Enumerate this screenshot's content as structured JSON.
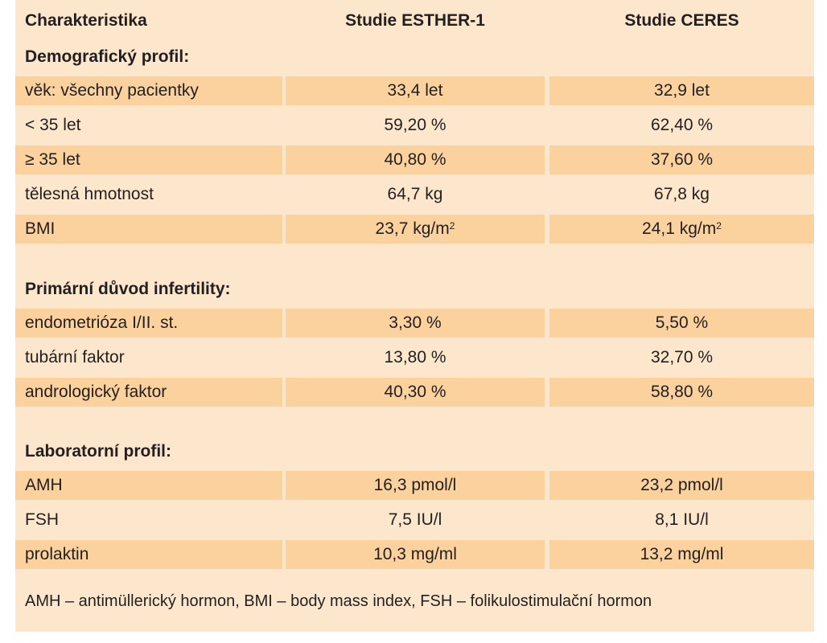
{
  "header": {
    "col1": "Charakteristika",
    "col2": "Studie ESTHER-1",
    "col3": "Studie CERES"
  },
  "sections": {
    "demo": {
      "title": "Demografický profil:",
      "rows": [
        {
          "label": "věk: všechny pacientky",
          "a": "33,4 let",
          "b": "32,9 let"
        },
        {
          "label": "< 35 let",
          "a": "59,20 %",
          "b": "62,40 %"
        },
        {
          "label": "≥ 35 let",
          "a": "40,80 %",
          "b": "37,60 %"
        },
        {
          "label": "tělesná hmotnost",
          "a": "64,7 kg",
          "b": "67,8 kg"
        },
        {
          "label": "BMI",
          "a": "23,7 kg/m",
          "b": "24,1 kg/m",
          "sup": "2"
        }
      ]
    },
    "cause": {
      "title": "Primární důvod infertility:",
      "rows": [
        {
          "label": "endometrióza I/II. st.",
          "a": "3,30 %",
          "b": "5,50 %"
        },
        {
          "label": "tubární faktor",
          "a": "13,80 %",
          "b": "32,70 %"
        },
        {
          "label": "andrologický faktor",
          "a": "40,30 %",
          "b": "58,80 %"
        }
      ]
    },
    "lab": {
      "title": "Laboratorní profil:",
      "rows": [
        {
          "label": "AMH",
          "a": "16,3 pmol/l",
          "b": "23,2 pmol/l"
        },
        {
          "label": "FSH",
          "a": "7,5 IU/l",
          "b": "8,1 IU/l"
        },
        {
          "label": "prolaktin",
          "a": "10,3 mg/ml",
          "b": "13,2 mg/ml"
        }
      ]
    }
  },
  "footnote": "AMH – antimüllerický hormon, BMI – body mass index, FSH – folikulostimulační hormon",
  "colors": {
    "panel": "#fde7cc",
    "row_shade": "#fbd19d",
    "text": "#231f20"
  }
}
